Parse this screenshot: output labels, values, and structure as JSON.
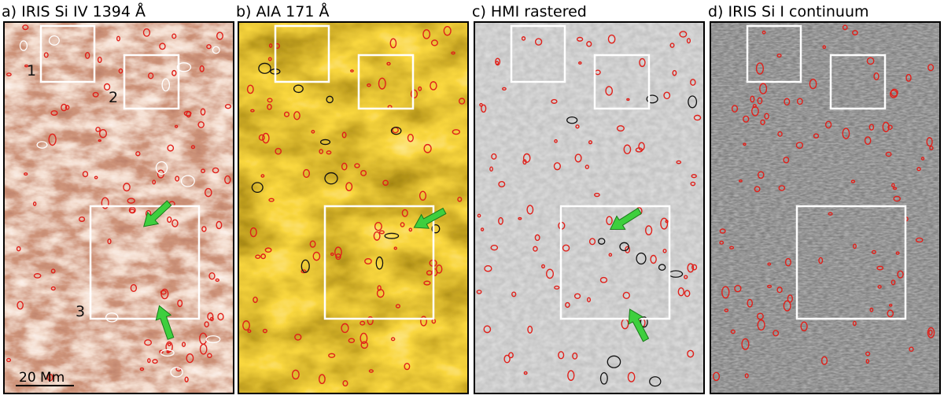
{
  "panels": [
    {
      "title": "a) IRIS Si IV 1394 Å",
      "region_labels": [
        "1",
        "2",
        "3"
      ],
      "scale_bar": "20 Mm"
    },
    {
      "title": "b) AIA 171 Å"
    },
    {
      "title": "c) HMI rastered"
    },
    {
      "title": "d) IRIS Si I continuum"
    }
  ]
}
